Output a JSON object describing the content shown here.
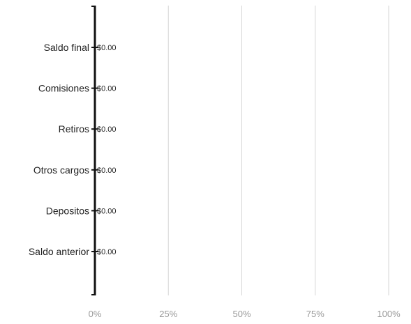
{
  "chart_data": {
    "type": "bar",
    "orientation": "horizontal",
    "categories": [
      "Saldo final",
      "Comisiones",
      "Retiros",
      "Otros cargos",
      "Depositos",
      "Saldo anterior"
    ],
    "values": [
      0,
      0,
      0,
      0,
      0,
      0
    ],
    "data_labels": [
      "$0.00",
      "$0.00",
      "$0.00",
      "$0.00",
      "$0.00",
      "$0.00"
    ],
    "x_ticks": [
      "0%",
      "25%",
      "50%",
      "75%",
      "100%"
    ],
    "xlim": [
      0,
      100
    ],
    "grid": "vertical",
    "legend": "none",
    "colors": {
      "axis": "#111111",
      "grid": "#d6d6d6",
      "text": "#222222",
      "tick_text": "#9a9a9a"
    }
  }
}
